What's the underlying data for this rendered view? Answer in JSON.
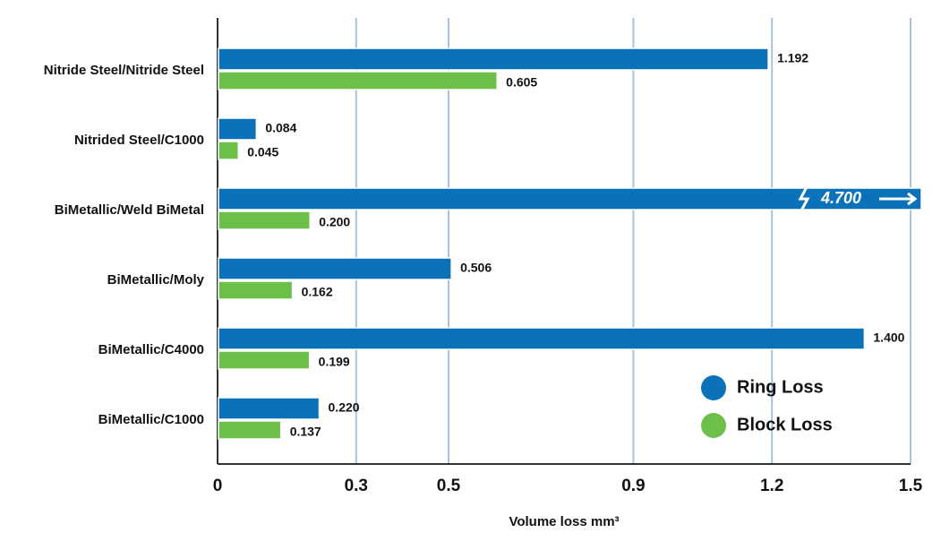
{
  "chart_data": {
    "type": "bar",
    "orientation": "horizontal",
    "x_label": "Volume loss mm³",
    "categories": [
      "Nitride Steel/Nitride Steel",
      "Nitrided Steel/C1000",
      "BiMetallic/Weld BiMetal",
      "BiMetallic/Moly",
      "BiMetallic/C4000",
      "BiMetallic/C1000"
    ],
    "series": [
      {
        "name": "Ring Loss",
        "color": "#0b72b9",
        "values": [
          1.192,
          0.084,
          4.7,
          0.506,
          1.4,
          0.22
        ],
        "value_labels": [
          "1.192",
          "0.084",
          "4.700",
          "0.506",
          "1.400",
          "0.220"
        ]
      },
      {
        "name": "Block Loss",
        "color": "#6cc04a",
        "values": [
          0.605,
          0.045,
          0.2,
          0.162,
          0.199,
          0.137
        ],
        "value_labels": [
          "0.605",
          "0.045",
          "0.200",
          "0.162",
          "0.199",
          "0.137"
        ]
      }
    ],
    "xlim": [
      0,
      1.5
    ],
    "xticks": [
      0,
      0.3,
      0.5,
      0.9,
      1.2,
      1.5
    ],
    "grid": true,
    "legend": "lower right"
  }
}
